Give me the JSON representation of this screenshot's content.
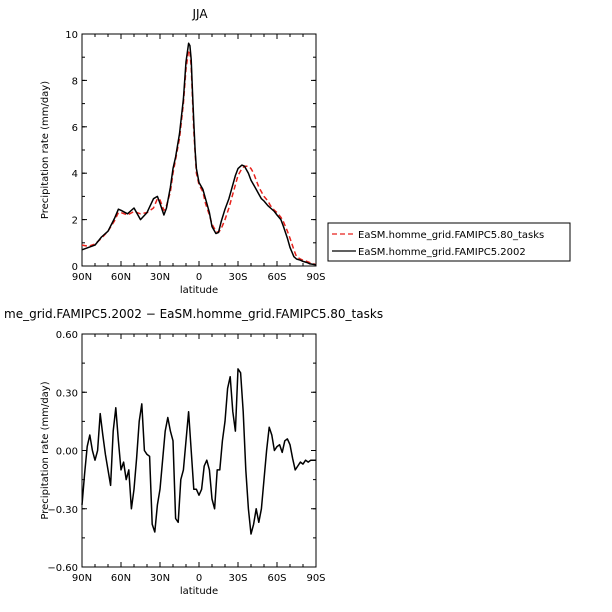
{
  "chart_data": [
    {
      "type": "line",
      "title": "JJA",
      "xlabel": "latitude",
      "ylabel": "Precipitation rate (mm/day)",
      "xlim": [
        90,
        -90
      ],
      "ylim": [
        0,
        10
      ],
      "yticks": [
        0,
        2,
        4,
        6,
        8,
        10
      ],
      "xticks": [
        90,
        60,
        30,
        0,
        -30,
        -60,
        -90
      ],
      "xtick_labels": [
        "90N",
        "60N",
        "30N",
        "0",
        "30S",
        "60S",
        "90S"
      ],
      "legend_position": "right",
      "series": [
        {
          "name": "EaSM.homme_grid.FAMIPC5.80_tasks",
          "color": "#e8221c",
          "dash": "dashed",
          "x": [
            90,
            85,
            80,
            75,
            70,
            65,
            62,
            60,
            55,
            50,
            45,
            40,
            35,
            32,
            30,
            27,
            25,
            22,
            20,
            18,
            15,
            12,
            10,
            8,
            7,
            6,
            5,
            4,
            3,
            2,
            0,
            -3,
            -5,
            -8,
            -10,
            -13,
            -15,
            -17,
            -20,
            -23,
            -25,
            -28,
            -30,
            -33,
            -35,
            -38,
            -40,
            -42,
            -44,
            -46,
            -48,
            -50,
            -53,
            -55,
            -58,
            -60,
            -63,
            -65,
            -68,
            -70,
            -73,
            -75,
            -78,
            -80,
            -83,
            -85,
            -88,
            -90
          ],
          "y": [
            0.9,
            0.85,
            0.95,
            1.2,
            1.5,
            1.95,
            2.3,
            2.3,
            2.2,
            2.35,
            2.25,
            2.3,
            2.5,
            2.9,
            2.85,
            2.4,
            2.6,
            3.2,
            4.0,
            4.6,
            5.5,
            7.0,
            8.5,
            9.3,
            9.2,
            8.6,
            7.2,
            5.8,
            4.9,
            4.0,
            3.5,
            3.2,
            2.7,
            2.2,
            1.8,
            1.5,
            1.45,
            1.6,
            2.0,
            2.5,
            2.9,
            3.5,
            3.9,
            4.2,
            4.3,
            4.3,
            4.2,
            4.0,
            3.7,
            3.4,
            3.2,
            3.0,
            2.8,
            2.6,
            2.4,
            2.3,
            2.1,
            1.9,
            1.5,
            1.2,
            0.7,
            0.4,
            0.3,
            0.25,
            0.2,
            0.15,
            0.1,
            0.05
          ]
        },
        {
          "name": "EaSM.homme_grid.FAMIPC5.2002",
          "color": "#000000",
          "dash": "solid",
          "x": [
            90,
            85,
            80,
            75,
            70,
            65,
            62,
            60,
            55,
            50,
            45,
            40,
            35,
            32,
            30,
            27,
            25,
            22,
            20,
            18,
            15,
            12,
            10,
            8,
            7,
            6,
            5,
            4,
            3,
            2,
            0,
            -3,
            -5,
            -8,
            -10,
            -13,
            -15,
            -17,
            -20,
            -23,
            -25,
            -28,
            -30,
            -33,
            -35,
            -38,
            -40,
            -42,
            -44,
            -46,
            -48,
            -50,
            -53,
            -55,
            -58,
            -60,
            -63,
            -65,
            -68,
            -70,
            -73,
            -75,
            -78,
            -80,
            -83,
            -85,
            -88,
            -90
          ],
          "y": [
            0.7,
            0.8,
            0.9,
            1.25,
            1.5,
            2.05,
            2.45,
            2.4,
            2.25,
            2.5,
            2.0,
            2.3,
            2.9,
            3.0,
            2.7,
            2.2,
            2.5,
            3.4,
            4.2,
            4.7,
            5.7,
            7.2,
            8.8,
            9.6,
            9.5,
            8.9,
            7.5,
            6.2,
            5.0,
            4.2,
            3.6,
            3.3,
            2.9,
            2.3,
            1.7,
            1.4,
            1.45,
            1.9,
            2.45,
            2.9,
            3.3,
            3.9,
            4.2,
            4.35,
            4.3,
            4.0,
            3.7,
            3.5,
            3.3,
            3.1,
            2.9,
            2.8,
            2.6,
            2.5,
            2.35,
            2.2,
            2.0,
            1.7,
            1.2,
            0.8,
            0.4,
            0.3,
            0.25,
            0.2,
            0.15,
            0.1,
            0.07,
            0.05
          ]
        }
      ]
    },
    {
      "type": "line",
      "title": "me_grid.FAMIPC5.2002 − EaSM.homme_grid.FAMIPC5.80_tasks",
      "xlabel": "latitude",
      "ylabel": "Precipitation rate (mm/day)",
      "xlim": [
        90,
        -90
      ],
      "ylim": [
        -0.6,
        0.6
      ],
      "yticks": [
        -0.6,
        -0.3,
        0.0,
        0.3,
        0.6
      ],
      "ytick_labels": [
        "−0.60",
        "−0.30",
        "0.00",
        "0.30",
        "0.60"
      ],
      "xticks": [
        90,
        60,
        30,
        0,
        -30,
        -60,
        -90
      ],
      "xtick_labels": [
        "90N",
        "60N",
        "30N",
        "0",
        "30S",
        "60S",
        "90S"
      ],
      "series": [
        {
          "color": "#000000",
          "x": [
            90,
            88,
            86,
            84,
            82,
            80,
            78,
            76,
            74,
            72,
            70,
            68,
            66,
            64,
            62,
            60,
            58,
            56,
            54,
            52,
            50,
            48,
            46,
            44,
            42,
            40,
            38,
            36,
            34,
            32,
            30,
            28,
            26,
            24,
            22,
            20,
            18,
            16,
            14,
            12,
            10,
            8,
            6,
            4,
            2,
            0,
            -2,
            -4,
            -6,
            -8,
            -10,
            -12,
            -14,
            -16,
            -18,
            -20,
            -22,
            -24,
            -26,
            -28,
            -30,
            -32,
            -34,
            -36,
            -38,
            -40,
            -42,
            -44,
            -46,
            -48,
            -50,
            -52,
            -54,
            -56,
            -58,
            -60,
            -62,
            -64,
            -66,
            -68,
            -70,
            -72,
            -74,
            -76,
            -78,
            -80,
            -82,
            -84,
            -86,
            -88,
            -90
          ],
          "y": [
            -0.28,
            -0.12,
            0.02,
            0.08,
            0.0,
            -0.05,
            0.0,
            0.19,
            0.08,
            -0.02,
            -0.1,
            -0.18,
            0.1,
            0.22,
            0.05,
            -0.1,
            -0.06,
            -0.15,
            -0.1,
            -0.3,
            -0.2,
            -0.04,
            0.15,
            0.24,
            0.0,
            -0.02,
            -0.03,
            -0.38,
            -0.42,
            -0.28,
            -0.2,
            -0.05,
            0.1,
            0.17,
            0.1,
            0.05,
            -0.35,
            -0.37,
            -0.15,
            -0.1,
            0.05,
            0.2,
            0.0,
            -0.2,
            -0.2,
            -0.23,
            -0.2,
            -0.08,
            -0.05,
            -0.1,
            -0.25,
            -0.3,
            -0.1,
            -0.1,
            0.05,
            0.15,
            0.32,
            0.38,
            0.2,
            0.1,
            0.42,
            0.4,
            0.2,
            -0.1,
            -0.3,
            -0.43,
            -0.38,
            -0.3,
            -0.37,
            -0.3,
            -0.15,
            0.0,
            0.12,
            0.08,
            0.0,
            0.02,
            0.03,
            -0.01,
            0.05,
            0.06,
            0.03,
            -0.04,
            -0.1,
            -0.08,
            -0.06,
            -0.07,
            -0.05,
            -0.06,
            -0.05,
            -0.05,
            -0.05
          ]
        }
      ]
    }
  ]
}
